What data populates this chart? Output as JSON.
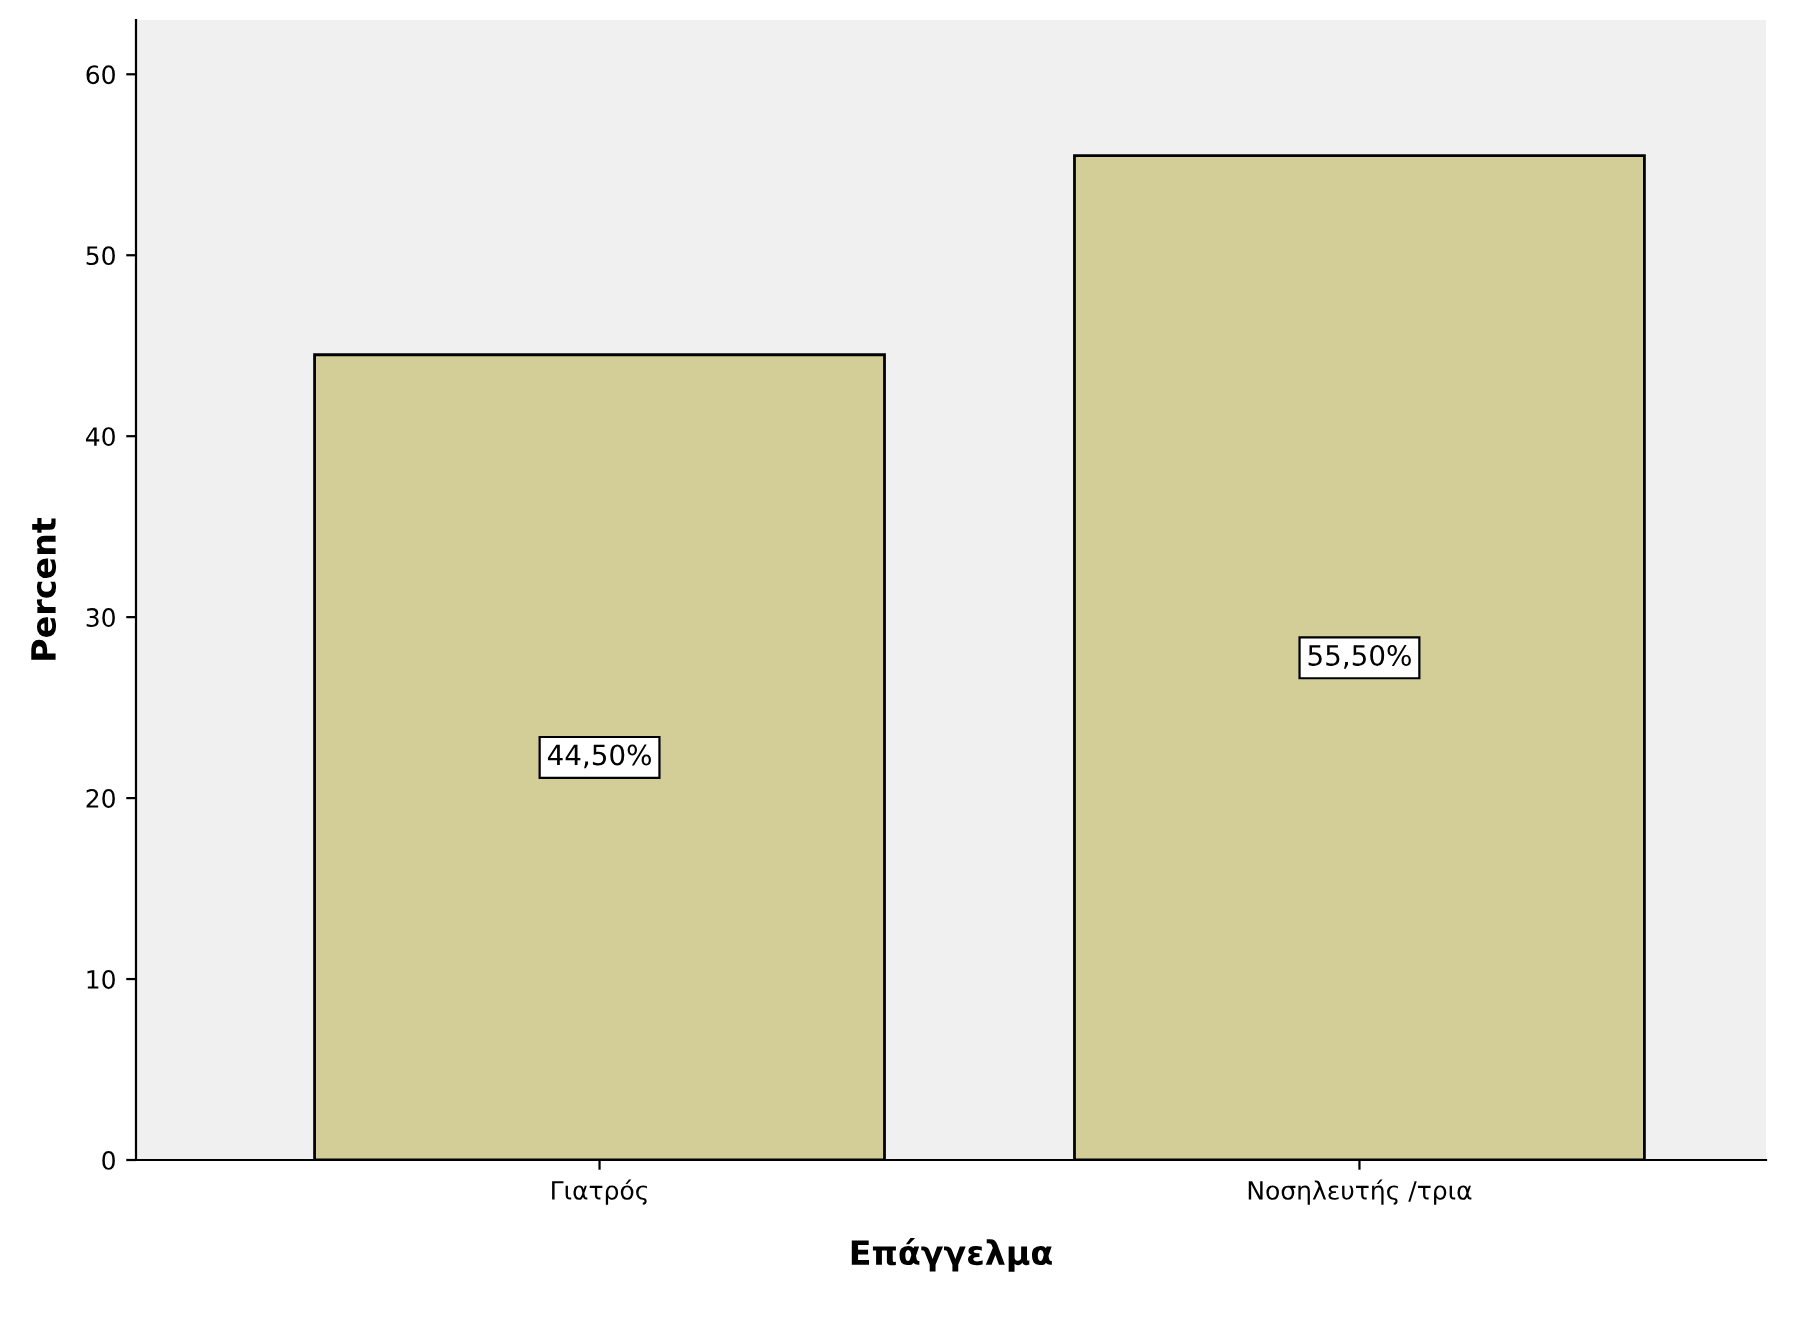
{
  "chart_data": {
    "type": "bar",
    "xlabel": "Επάγγελμα",
    "ylabel": "Percent",
    "categories": [
      "Γιατρός",
      "Νοσηλευτής /τρια"
    ],
    "values": [
      44.5,
      55.5
    ],
    "color": "#d3ce98",
    "value_labels": [
      "44,50%",
      "55,50%"
    ],
    "ylim": [
      0,
      63
    ],
    "yticks": [
      0,
      10,
      20,
      30,
      40,
      50,
      60
    ],
    "grid": false,
    "legend": false
  }
}
